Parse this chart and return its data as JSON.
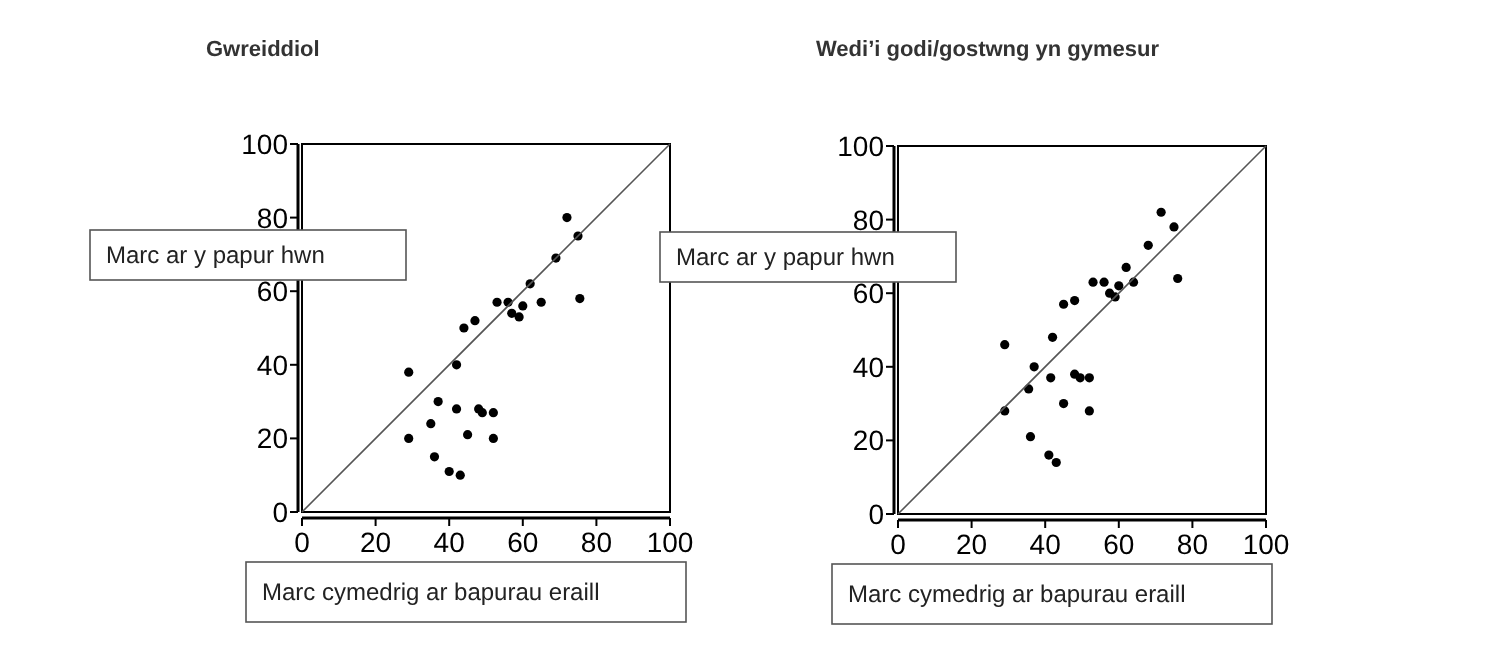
{
  "chart_data": [
    {
      "type": "scatter",
      "title": "Gwreiddiol",
      "xlabel": "Marc cymedrig ar bapurau eraill",
      "ylabel": "Marc ar y papur hwn",
      "xlim": [
        0,
        100
      ],
      "ylim": [
        0,
        100
      ],
      "xticks": [
        0,
        20,
        40,
        60,
        80,
        100
      ],
      "yticks": [
        0,
        20,
        40,
        60,
        80,
        100
      ],
      "marker": "circle",
      "series": [
        {
          "color": "#000000",
          "x": [
            72,
            75,
            69,
            62,
            53,
            56,
            65,
            75.5,
            60,
            57,
            59,
            47,
            44,
            42,
            29,
            37,
            35,
            42,
            48,
            49,
            52,
            45,
            52,
            29,
            36,
            40,
            43
          ],
          "values": [
            80,
            75,
            69,
            62,
            57,
            57,
            57,
            58,
            56,
            54,
            53,
            52,
            50,
            40,
            38,
            30,
            24,
            28,
            28,
            27,
            27,
            21,
            20,
            20,
            15,
            11,
            10
          ]
        },
        {
          "type": "line",
          "marker": "none",
          "color": "#555555",
          "x": [
            0,
            100
          ],
          "values": [
            0,
            100
          ]
        }
      ]
    },
    {
      "type": "scatter",
      "title": "Wedi’i godi/gostwng yn gymesur",
      "xlabel": "Marc cymedrig ar bapurau eraill",
      "ylabel": "Marc ar y papur hwn",
      "xlim": [
        0,
        100
      ],
      "ylim": [
        0,
        100
      ],
      "xticks": [
        0,
        20,
        40,
        60,
        80,
        100
      ],
      "yticks": [
        0,
        20,
        40,
        60,
        80,
        100
      ],
      "marker": "circle",
      "series": [
        {
          "color": "#000000",
          "x": [
            71.5,
            75,
            68,
            62,
            53,
            56,
            64,
            76,
            60,
            57.5,
            59,
            48,
            45,
            42,
            29,
            37,
            35.5,
            41.5,
            48,
            49.5,
            52,
            45,
            52,
            29,
            36,
            41,
            43
          ],
          "values": [
            82,
            78,
            73,
            67,
            63,
            63,
            63,
            64,
            62,
            60,
            59,
            58,
            57,
            48,
            46,
            40,
            34,
            37,
            38,
            37,
            37,
            30,
            28,
            28,
            21,
            16,
            14
          ]
        },
        {
          "type": "line",
          "marker": "none",
          "color": "#555555",
          "x": [
            0,
            100
          ],
          "values": [
            0,
            100
          ]
        }
      ]
    }
  ]
}
